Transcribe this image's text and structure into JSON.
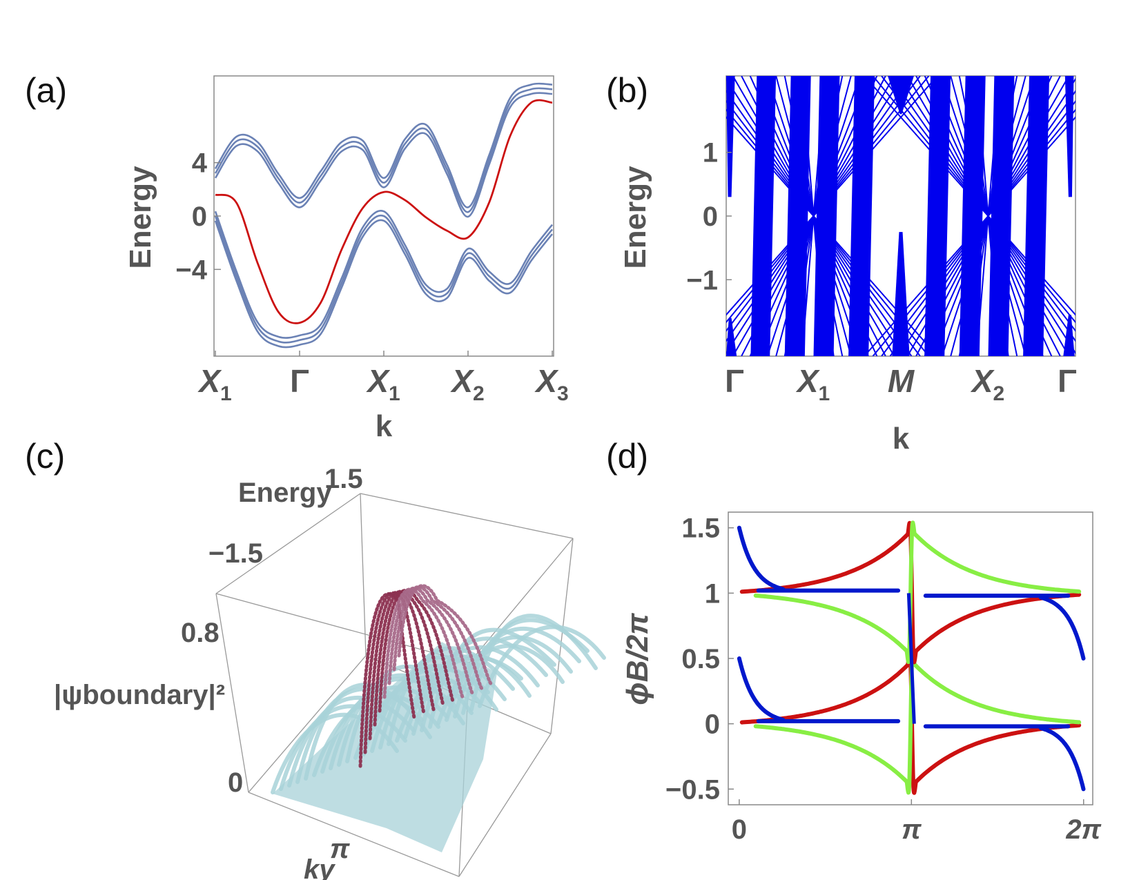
{
  "figure": {
    "panel_labels": [
      "(a)",
      "(b)",
      "(c)",
      "(d)"
    ]
  },
  "chart_data": [
    {
      "panel": "(a)",
      "type": "line",
      "xlabel": "k",
      "ylabel": "Energy",
      "x_ticks": [
        {
          "main": "X",
          "sub": "1",
          "pos": 0.0
        },
        {
          "main": "Γ",
          "sub": "",
          "pos": 1.0
        },
        {
          "main": "X",
          "sub": "1",
          "pos": 2.0
        },
        {
          "main": "X",
          "sub": "2",
          "pos": 3.0
        },
        {
          "main": "X",
          "sub": "3",
          "pos": 4.0
        }
      ],
      "y_ticks": [
        "4",
        "0",
        "−4"
      ],
      "y_tick_values": [
        4,
        0,
        -4
      ],
      "xlim": [
        0,
        4
      ],
      "ylim": [
        -10.5,
        10.5
      ],
      "colors": {
        "bulk": "#6b82b5",
        "edge": "#cc1111"
      },
      "series": [
        {
          "name": "bulk upper",
          "color": "#6b82b5",
          "x": [
            0,
            0.25,
            0.5,
            0.75,
            1.0,
            1.25,
            1.5,
            1.75,
            2.0,
            2.25,
            2.5,
            2.75,
            3.0,
            3.25,
            3.5,
            3.75,
            4.0
          ],
          "y": [
            3.2,
            5.6,
            5.2,
            2.8,
            1.0,
            3.0,
            5.2,
            5.3,
            2.5,
            5.4,
            6.5,
            3.5,
            0.3,
            4.2,
            8.5,
            9.5,
            9.5
          ]
        },
        {
          "name": "bulk lower",
          "color": "#6b82b5",
          "x": [
            0,
            0.25,
            0.5,
            0.75,
            1.0,
            1.25,
            1.5,
            1.75,
            2.0,
            2.25,
            2.5,
            2.75,
            3.0,
            3.25,
            3.5,
            3.75,
            4.0
          ],
          "y": [
            0,
            -4.5,
            -8.3,
            -9.4,
            -9.3,
            -8.5,
            -5.0,
            -1.2,
            0,
            -2.5,
            -5.5,
            -5.8,
            -2.8,
            -4.5,
            -5.4,
            -3.0,
            -1.0
          ]
        },
        {
          "name": "edge state",
          "color": "#cc1111",
          "x": [
            0,
            0.25,
            0.5,
            0.75,
            1.0,
            1.25,
            1.5,
            1.75,
            2.0,
            2.25,
            2.5,
            2.75,
            3.0,
            3.25,
            3.5,
            3.75,
            4.0
          ],
          "y": [
            1.6,
            1.0,
            -3.5,
            -7.2,
            -8.0,
            -6.5,
            -2.5,
            0.6,
            1.8,
            1.2,
            -0.1,
            -1.1,
            -1.6,
            1.0,
            6.0,
            8.5,
            8.5
          ]
        }
      ]
    },
    {
      "panel": "(b)",
      "type": "line",
      "xlabel": "k",
      "ylabel": "Energy",
      "x_ticks": [
        {
          "main": "Γ",
          "sub": "",
          "pos": 0.0
        },
        {
          "main": "X",
          "sub": "1",
          "pos": 1.0
        },
        {
          "main": "M",
          "sub": "",
          "pos": 2.0
        },
        {
          "main": "X",
          "sub": "2",
          "pos": 3.0
        },
        {
          "main": "Γ",
          "sub": "",
          "pos": 4.0
        }
      ],
      "y_ticks": [
        "1",
        "0",
        "−1"
      ],
      "y_tick_values": [
        1,
        0,
        -1
      ],
      "xlim": [
        0,
        4
      ],
      "ylim": [
        -2.2,
        2.2
      ],
      "colors": {
        "bands": "#0000ee"
      },
      "note": "dense family of blue bands; Dirac crossings at E=0 near X1 and X2"
    },
    {
      "panel": "(c)",
      "type": "surface3d",
      "zlabel": "|ψboundary|²",
      "ylabel": "Energy",
      "xlabel": "ky",
      "tick_labels": {
        "energy_top": "1.5",
        "energy_bottom": "−1.5",
        "z_mid": "0.8",
        "z_zero": "0",
        "ky": "π"
      },
      "colors": {
        "peak": "#8c3050",
        "base": "#a8d2d8"
      }
    },
    {
      "panel": "(d)",
      "type": "scatter",
      "xlabel": "",
      "ylabel": "ϕB/2π",
      "x_ticks": [
        "0",
        "π",
        "2π"
      ],
      "x_tick_values": [
        0,
        3.14159,
        6.28318
      ],
      "y_ticks": [
        "1.5",
        "1",
        "0.5",
        "0",
        "−0.5"
      ],
      "y_tick_values": [
        1.5,
        1,
        0.5,
        0,
        -0.5
      ],
      "xlim": [
        -0.2,
        6.45
      ],
      "ylim": [
        -0.62,
        1.62
      ],
      "series": [
        {
          "name": "blue",
          "color": "#0018cc"
        },
        {
          "name": "green",
          "color": "#88ee44"
        },
        {
          "name": "red",
          "color": "#cc1111"
        }
      ]
    }
  ]
}
